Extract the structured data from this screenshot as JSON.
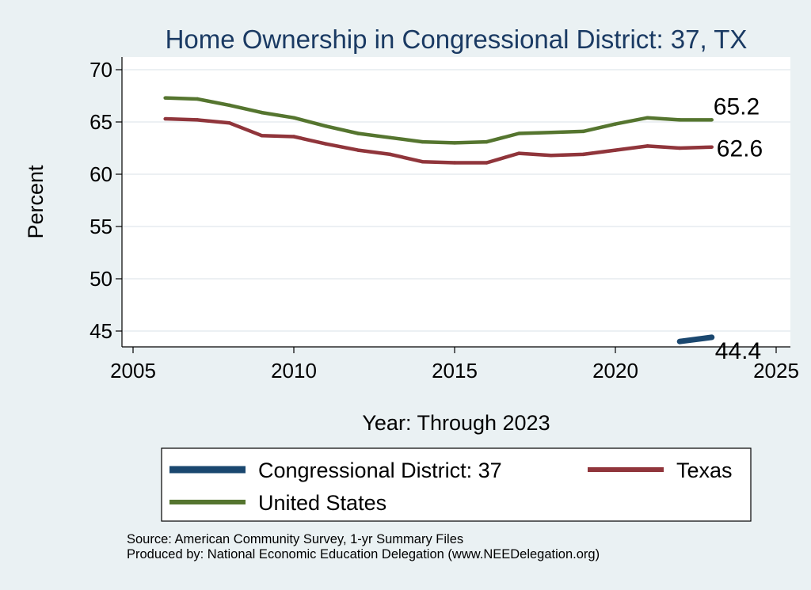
{
  "chart_data": {
    "type": "line",
    "title": "Home Ownership in Congressional District:  37, TX",
    "xlabel": "Year: Through 2023",
    "ylabel": "Percent",
    "xlim": [
      2005,
      2025
    ],
    "ylim": [
      43,
      71
    ],
    "xticks": [
      "2005",
      "2010",
      "2015",
      "2020",
      "2025"
    ],
    "yticks": [
      "45",
      "50",
      "55",
      "60",
      "65",
      "70"
    ],
    "grid": true,
    "legend_position": "bottom",
    "series": [
      {
        "name": "Congressional District:  37",
        "color": "#1a476f",
        "x": [
          2022,
          2023
        ],
        "y": [
          44.0,
          44.4
        ],
        "end_label": "44.4"
      },
      {
        "name": "Texas",
        "color": "#90353b",
        "x": [
          2006,
          2007,
          2008,
          2009,
          2010,
          2011,
          2012,
          2013,
          2014,
          2015,
          2016,
          2017,
          2018,
          2019,
          2020,
          2021,
          2022,
          2023
        ],
        "y": [
          65.3,
          65.2,
          64.9,
          63.7,
          63.6,
          62.9,
          62.3,
          61.9,
          61.2,
          61.1,
          61.1,
          62.0,
          61.8,
          61.9,
          62.3,
          62.7,
          62.5,
          62.6
        ],
        "end_label": "62.6"
      },
      {
        "name": "United States",
        "color": "#55752f",
        "x": [
          2006,
          2007,
          2008,
          2009,
          2010,
          2011,
          2012,
          2013,
          2014,
          2015,
          2016,
          2017,
          2018,
          2019,
          2020,
          2021,
          2022,
          2023
        ],
        "y": [
          67.3,
          67.2,
          66.6,
          65.9,
          65.4,
          64.6,
          63.9,
          63.5,
          63.1,
          63.0,
          63.1,
          63.9,
          64.0,
          64.1,
          64.8,
          65.4,
          65.2,
          65.2
        ],
        "end_label": "65.2"
      }
    ]
  },
  "footer": {
    "source": "Source: American Community Survey, 1-yr Summary Files",
    "produced": "Produced by: National Economic Education Delegation (www.NEEDelegation.org)"
  }
}
